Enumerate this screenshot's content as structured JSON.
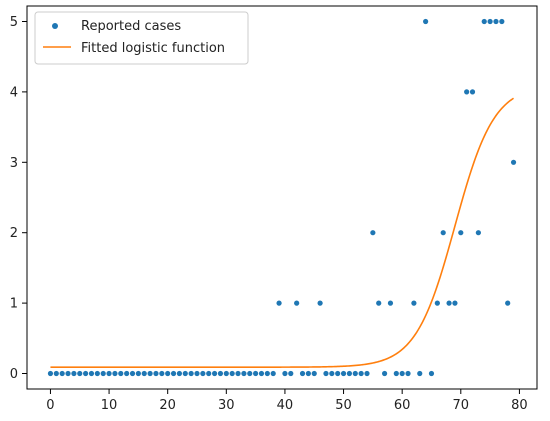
{
  "chart_data": {
    "type": "scatter",
    "xlim": [
      -4,
      83
    ],
    "ylim": [
      -0.22,
      5.22
    ],
    "xticks": [
      "0",
      "10",
      "20",
      "30",
      "40",
      "50",
      "60",
      "70",
      "80"
    ],
    "yticks": [
      "0",
      "1",
      "2",
      "3",
      "4",
      "5"
    ],
    "grid": false,
    "legend_position": "top-left",
    "series": [
      {
        "name": "Reported cases",
        "kind": "scatter",
        "color": "#1f77b4",
        "points": [
          [
            0,
            0
          ],
          [
            1,
            0
          ],
          [
            2,
            0
          ],
          [
            3,
            0
          ],
          [
            4,
            0
          ],
          [
            5,
            0
          ],
          [
            6,
            0
          ],
          [
            7,
            0
          ],
          [
            8,
            0
          ],
          [
            9,
            0
          ],
          [
            10,
            0
          ],
          [
            11,
            0
          ],
          [
            12,
            0
          ],
          [
            13,
            0
          ],
          [
            14,
            0
          ],
          [
            15,
            0
          ],
          [
            16,
            0
          ],
          [
            17,
            0
          ],
          [
            18,
            0
          ],
          [
            19,
            0
          ],
          [
            20,
            0
          ],
          [
            21,
            0
          ],
          [
            22,
            0
          ],
          [
            23,
            0
          ],
          [
            24,
            0
          ],
          [
            25,
            0
          ],
          [
            26,
            0
          ],
          [
            27,
            0
          ],
          [
            28,
            0
          ],
          [
            29,
            0
          ],
          [
            30,
            0
          ],
          [
            31,
            0
          ],
          [
            32,
            0
          ],
          [
            33,
            0
          ],
          [
            34,
            0
          ],
          [
            35,
            0
          ],
          [
            36,
            0
          ],
          [
            37,
            0
          ],
          [
            38,
            0
          ],
          [
            39,
            1
          ],
          [
            40,
            0
          ],
          [
            41,
            0
          ],
          [
            42,
            1
          ],
          [
            43,
            0
          ],
          [
            44,
            0
          ],
          [
            45,
            0
          ],
          [
            46,
            1
          ],
          [
            47,
            0
          ],
          [
            48,
            0
          ],
          [
            49,
            0
          ],
          [
            50,
            0
          ],
          [
            51,
            0
          ],
          [
            52,
            0
          ],
          [
            53,
            0
          ],
          [
            54,
            0
          ],
          [
            55,
            2
          ],
          [
            56,
            1
          ],
          [
            57,
            0
          ],
          [
            58,
            1
          ],
          [
            59,
            0
          ],
          [
            60,
            0
          ],
          [
            61,
            0
          ],
          [
            62,
            1
          ],
          [
            63,
            0
          ],
          [
            64,
            5
          ],
          [
            65,
            0
          ],
          [
            66,
            1
          ],
          [
            67,
            2
          ],
          [
            68,
            1
          ],
          [
            69,
            1
          ],
          [
            70,
            2
          ],
          [
            71,
            4
          ],
          [
            72,
            4
          ],
          [
            73,
            2
          ],
          [
            74,
            5
          ],
          [
            75,
            5
          ],
          [
            76,
            5
          ],
          [
            77,
            5
          ],
          [
            78,
            1
          ],
          [
            79,
            3
          ]
        ]
      },
      {
        "name": "Fitted logistic function",
        "kind": "line",
        "color": "#ff7f0e",
        "model": {
          "lower": 0.09,
          "upper": 4.1,
          "midpoint": 69,
          "rate": 0.3
        },
        "x_range": [
          0,
          79
        ]
      }
    ]
  }
}
